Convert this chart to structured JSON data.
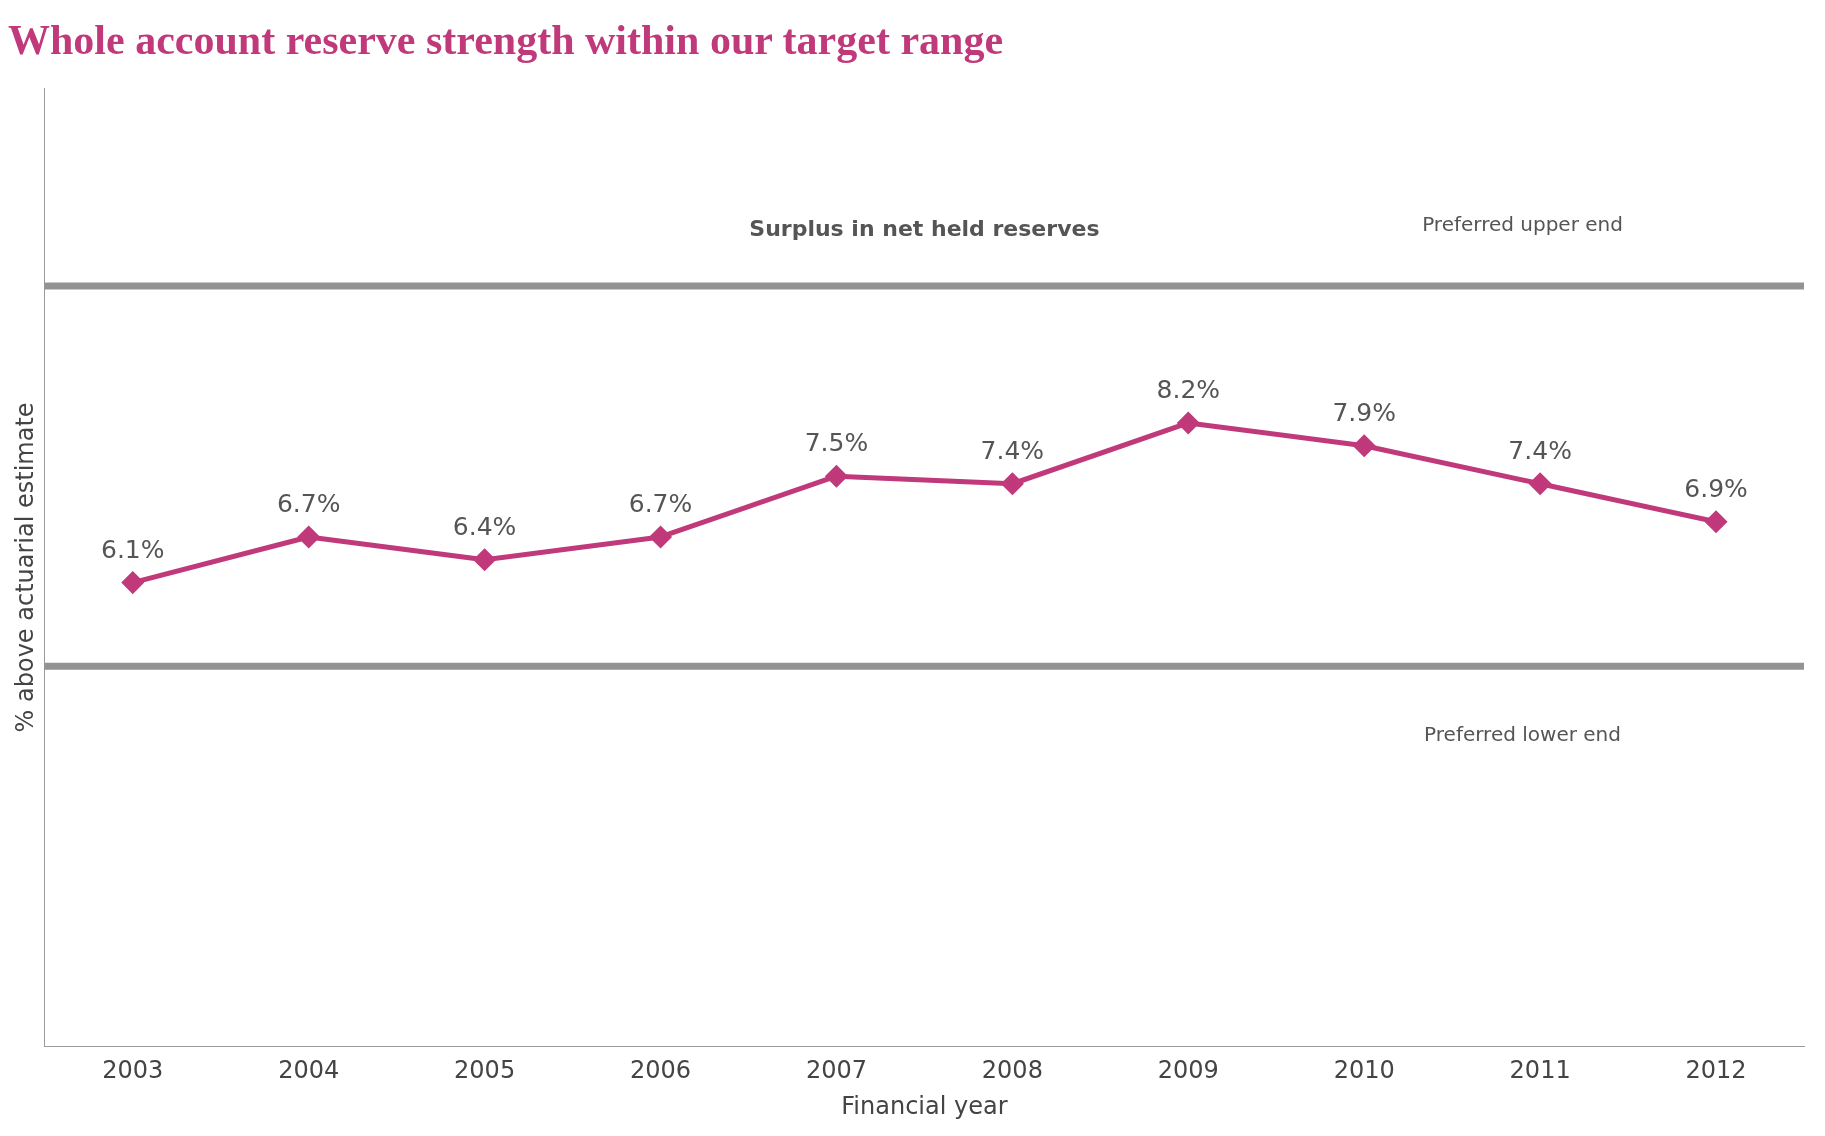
{
  "chart_data": {
    "type": "line",
    "title": "Whole account reserve strength within our target range",
    "xlabel": "Financial year",
    "ylabel": "% above actuarial estimate",
    "categories": [
      "2003",
      "2004",
      "2005",
      "2006",
      "2007",
      "2008",
      "2009",
      "2010",
      "2011",
      "2012"
    ],
    "series": [
      {
        "color": "#c0397a",
        "values": [
          6.1,
          6.7,
          6.4,
          6.7,
          7.5,
          7.4,
          8.2,
          7.9,
          7.4,
          6.9
        ],
        "value_labels": [
          "6.1%",
          "6.7%",
          "6.4%",
          "6.7%",
          "7.5%",
          "7.4%",
          "8.2%",
          "7.9%",
          "7.4%",
          "6.9%"
        ]
      }
    ],
    "ylim": [
      0,
      12.6
    ],
    "tick_labels": "x",
    "grid": false,
    "legend": false,
    "marker": "diamond",
    "line_style": "solid",
    "ref_lines": [
      {
        "axis": "y",
        "value": 10,
        "label": "Preferred upper end",
        "color": "#939393"
      },
      {
        "axis": "y",
        "value": 5,
        "label": "Preferred lower end",
        "color": "#939393"
      }
    ],
    "annotations": [
      "Surplus in net held reserves"
    ]
  }
}
